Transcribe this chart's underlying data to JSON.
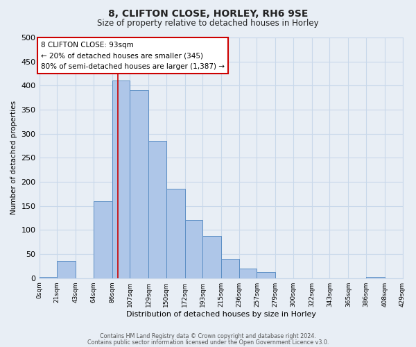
{
  "title": "8, CLIFTON CLOSE, HORLEY, RH6 9SE",
  "subtitle": "Size of property relative to detached houses in Horley",
  "xlabel": "Distribution of detached houses by size in Horley",
  "ylabel": "Number of detached properties",
  "footer_line1": "Contains HM Land Registry data © Crown copyright and database right 2024.",
  "footer_line2": "Contains public sector information licensed under the Open Government Licence v3.0.",
  "bin_edges": [
    0,
    21,
    43,
    64,
    86,
    107,
    129,
    150,
    172,
    193,
    215,
    236,
    257,
    279,
    300,
    322,
    343,
    365,
    386,
    408,
    429
  ],
  "bin_labels": [
    "0sqm",
    "21sqm",
    "43sqm",
    "64sqm",
    "86sqm",
    "107sqm",
    "129sqm",
    "150sqm",
    "172sqm",
    "193sqm",
    "215sqm",
    "236sqm",
    "257sqm",
    "279sqm",
    "300sqm",
    "322sqm",
    "343sqm",
    "365sqm",
    "386sqm",
    "408sqm",
    "429sqm"
  ],
  "counts": [
    2,
    35,
    0,
    160,
    410,
    390,
    285,
    185,
    120,
    87,
    40,
    20,
    12,
    0,
    0,
    0,
    0,
    0,
    2,
    0
  ],
  "bar_color": "#aec6e8",
  "bar_edge_color": "#5b8ec4",
  "grid_color": "#c8d8ea",
  "bg_color": "#e8eef5",
  "marker_value": 93,
  "marker_color": "#cc0000",
  "annotation_title": "8 CLIFTON CLOSE: 93sqm",
  "annotation_line1": "← 20% of detached houses are smaller (345)",
  "annotation_line2": "80% of semi-detached houses are larger (1,387) →",
  "annotation_box_color": "#ffffff",
  "annotation_box_edge": "#cc0000",
  "ylim": [
    0,
    500
  ],
  "yticks": [
    0,
    50,
    100,
    150,
    200,
    250,
    300,
    350,
    400,
    450,
    500
  ]
}
